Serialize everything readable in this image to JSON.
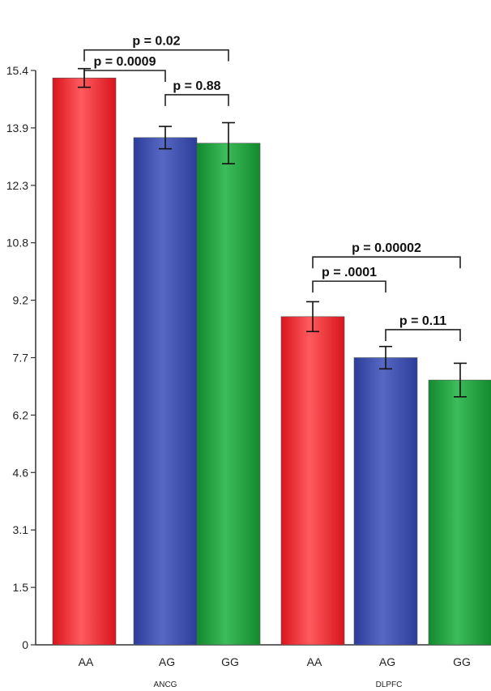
{
  "chart_data": {
    "type": "bar",
    "title": "",
    "xlabel": "",
    "ylabel": "",
    "ylim": [
      0,
      15.4
    ],
    "y_ticks": [
      "0",
      "1.5",
      "3.1",
      "4.6",
      "6.2",
      "7.7",
      "9.2",
      "10.8",
      "12.3",
      "13.9",
      "15.4"
    ],
    "y_tick_values": [
      0,
      1.54,
      3.08,
      4.62,
      6.16,
      7.7,
      9.24,
      10.78,
      12.32,
      13.86,
      15.4
    ],
    "groups": [
      {
        "name": "ANCG",
        "bars": [
          {
            "category": "AA",
            "value": 15.2,
            "error": 0.25,
            "color": "#e8232a"
          },
          {
            "category": "AG",
            "value": 13.6,
            "error": 0.3,
            "color": "#3c4eaa"
          },
          {
            "category": "GG",
            "value": 13.45,
            "error": 0.55,
            "color": "#1f9a3c"
          }
        ],
        "comparisons": [
          {
            "from": 0,
            "to": 2,
            "label": "p = 0.02",
            "level": 15.95
          },
          {
            "from": 0,
            "to": 1,
            "label": "p = 0.0009",
            "level": 15.4
          },
          {
            "from": 1,
            "to": 2,
            "label": "p = 0.88",
            "level": 14.75
          }
        ]
      },
      {
        "name": "DLPFC",
        "bars": [
          {
            "category": "AA",
            "value": 8.8,
            "error": 0.4,
            "color": "#e8232a"
          },
          {
            "category": "AG",
            "value": 7.7,
            "error": 0.3,
            "color": "#3c4eaa"
          },
          {
            "category": "GG",
            "value": 7.1,
            "error": 0.45,
            "color": "#1f9a3c"
          }
        ],
        "comparisons": [
          {
            "from": 0,
            "to": 2,
            "label": "p = 0.00002",
            "level": 10.4
          },
          {
            "from": 0,
            "to": 1,
            "label": "p = .0001",
            "level": 9.75
          },
          {
            "from": 1,
            "to": 2,
            "label": "p = 0.11",
            "level": 8.45
          }
        ]
      }
    ],
    "grid": false,
    "legend": "none"
  }
}
